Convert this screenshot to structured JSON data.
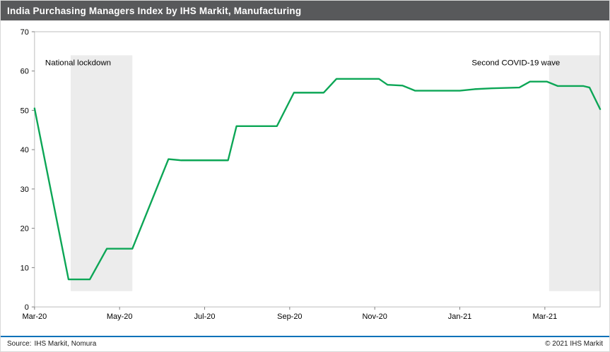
{
  "header": {
    "title": "India Purchasing Managers Index by IHS Markit, Manufacturing",
    "bar_color": "#58595B",
    "text_color": "#FFFFFF"
  },
  "footer": {
    "source_label": "Source:",
    "source_text": "IHS Markit, Nomura",
    "copyright": "© 2021  IHS Markit",
    "rule_color": "#0071B9"
  },
  "chart_data": {
    "type": "line",
    "title": "India Purchasing Managers Index by IHS Markit, Manufacturing",
    "xlabel": "",
    "ylabel": "",
    "xlim": [
      0,
      13.3
    ],
    "ylim": [
      0,
      70
    ],
    "grid": false,
    "x_unit": "months since Mar-20",
    "x_ticks": [
      {
        "pos": 0,
        "label": "Mar-20"
      },
      {
        "pos": 2,
        "label": "May-20"
      },
      {
        "pos": 4,
        "label": "Jul-20"
      },
      {
        "pos": 6,
        "label": "Sep-20"
      },
      {
        "pos": 8,
        "label": "Nov-20"
      },
      {
        "pos": 10,
        "label": "Jan-21"
      },
      {
        "pos": 12,
        "label": "Mar-21"
      }
    ],
    "y_ticks": [
      0,
      10,
      20,
      30,
      40,
      50,
      60,
      70
    ],
    "series": [
      {
        "name": "India PMI",
        "color": "#0CA656",
        "points": [
          [
            0,
            50.5
          ],
          [
            0.8,
            7.0
          ],
          [
            1.3,
            7.0
          ],
          [
            1.7,
            14.8
          ],
          [
            2.3,
            14.8
          ],
          [
            3.15,
            37.6
          ],
          [
            3.45,
            37.3
          ],
          [
            4.55,
            37.3
          ],
          [
            4.75,
            46.0
          ],
          [
            5.7,
            46.0
          ],
          [
            6.1,
            54.5
          ],
          [
            6.8,
            54.5
          ],
          [
            7.1,
            58.0
          ],
          [
            8.1,
            58.0
          ],
          [
            8.3,
            56.5
          ],
          [
            8.65,
            56.3
          ],
          [
            8.95,
            55.0
          ],
          [
            10.0,
            55.0
          ],
          [
            10.35,
            55.4
          ],
          [
            10.75,
            55.6
          ],
          [
            11.4,
            55.8
          ],
          [
            11.65,
            57.3
          ],
          [
            12.05,
            57.3
          ],
          [
            12.3,
            56.2
          ],
          [
            12.9,
            56.2
          ],
          [
            13.05,
            55.8
          ],
          [
            13.3,
            50.3
          ]
        ]
      }
    ],
    "monthly_values": {
      "Mar-20": 50.5,
      "Apr-20": 7.0,
      "May-20": 14.8,
      "Jun-20": 37.5,
      "Jul-20": 37.3,
      "Aug-20": 46.0,
      "Sep-20": 54.5,
      "Oct-20": 58.0,
      "Nov-20": 57.0,
      "Dec-20": 55.0,
      "Jan-21": 55.3,
      "Feb-21": 56.2,
      "Mar-21": 57.0,
      "Apr-21": 50.3
    },
    "bands": [
      {
        "label": "National lockdown",
        "x0": 0.85,
        "x1": 2.3,
        "y0": 4,
        "y1": 64,
        "color": "#ECECEC"
      },
      {
        "label": "Second COVID-19 wave",
        "x0": 12.1,
        "x1": 13.3,
        "y0": 4,
        "y1": 64,
        "color": "#ECECEC"
      }
    ],
    "annotations": [
      {
        "text": "National lockdown",
        "x": 0.25,
        "y": 61.5,
        "anchor": "start"
      },
      {
        "text": "Second COVID-19 wave",
        "x": 10.28,
        "y": 61.5,
        "anchor": "start"
      }
    ],
    "legend": "none"
  }
}
